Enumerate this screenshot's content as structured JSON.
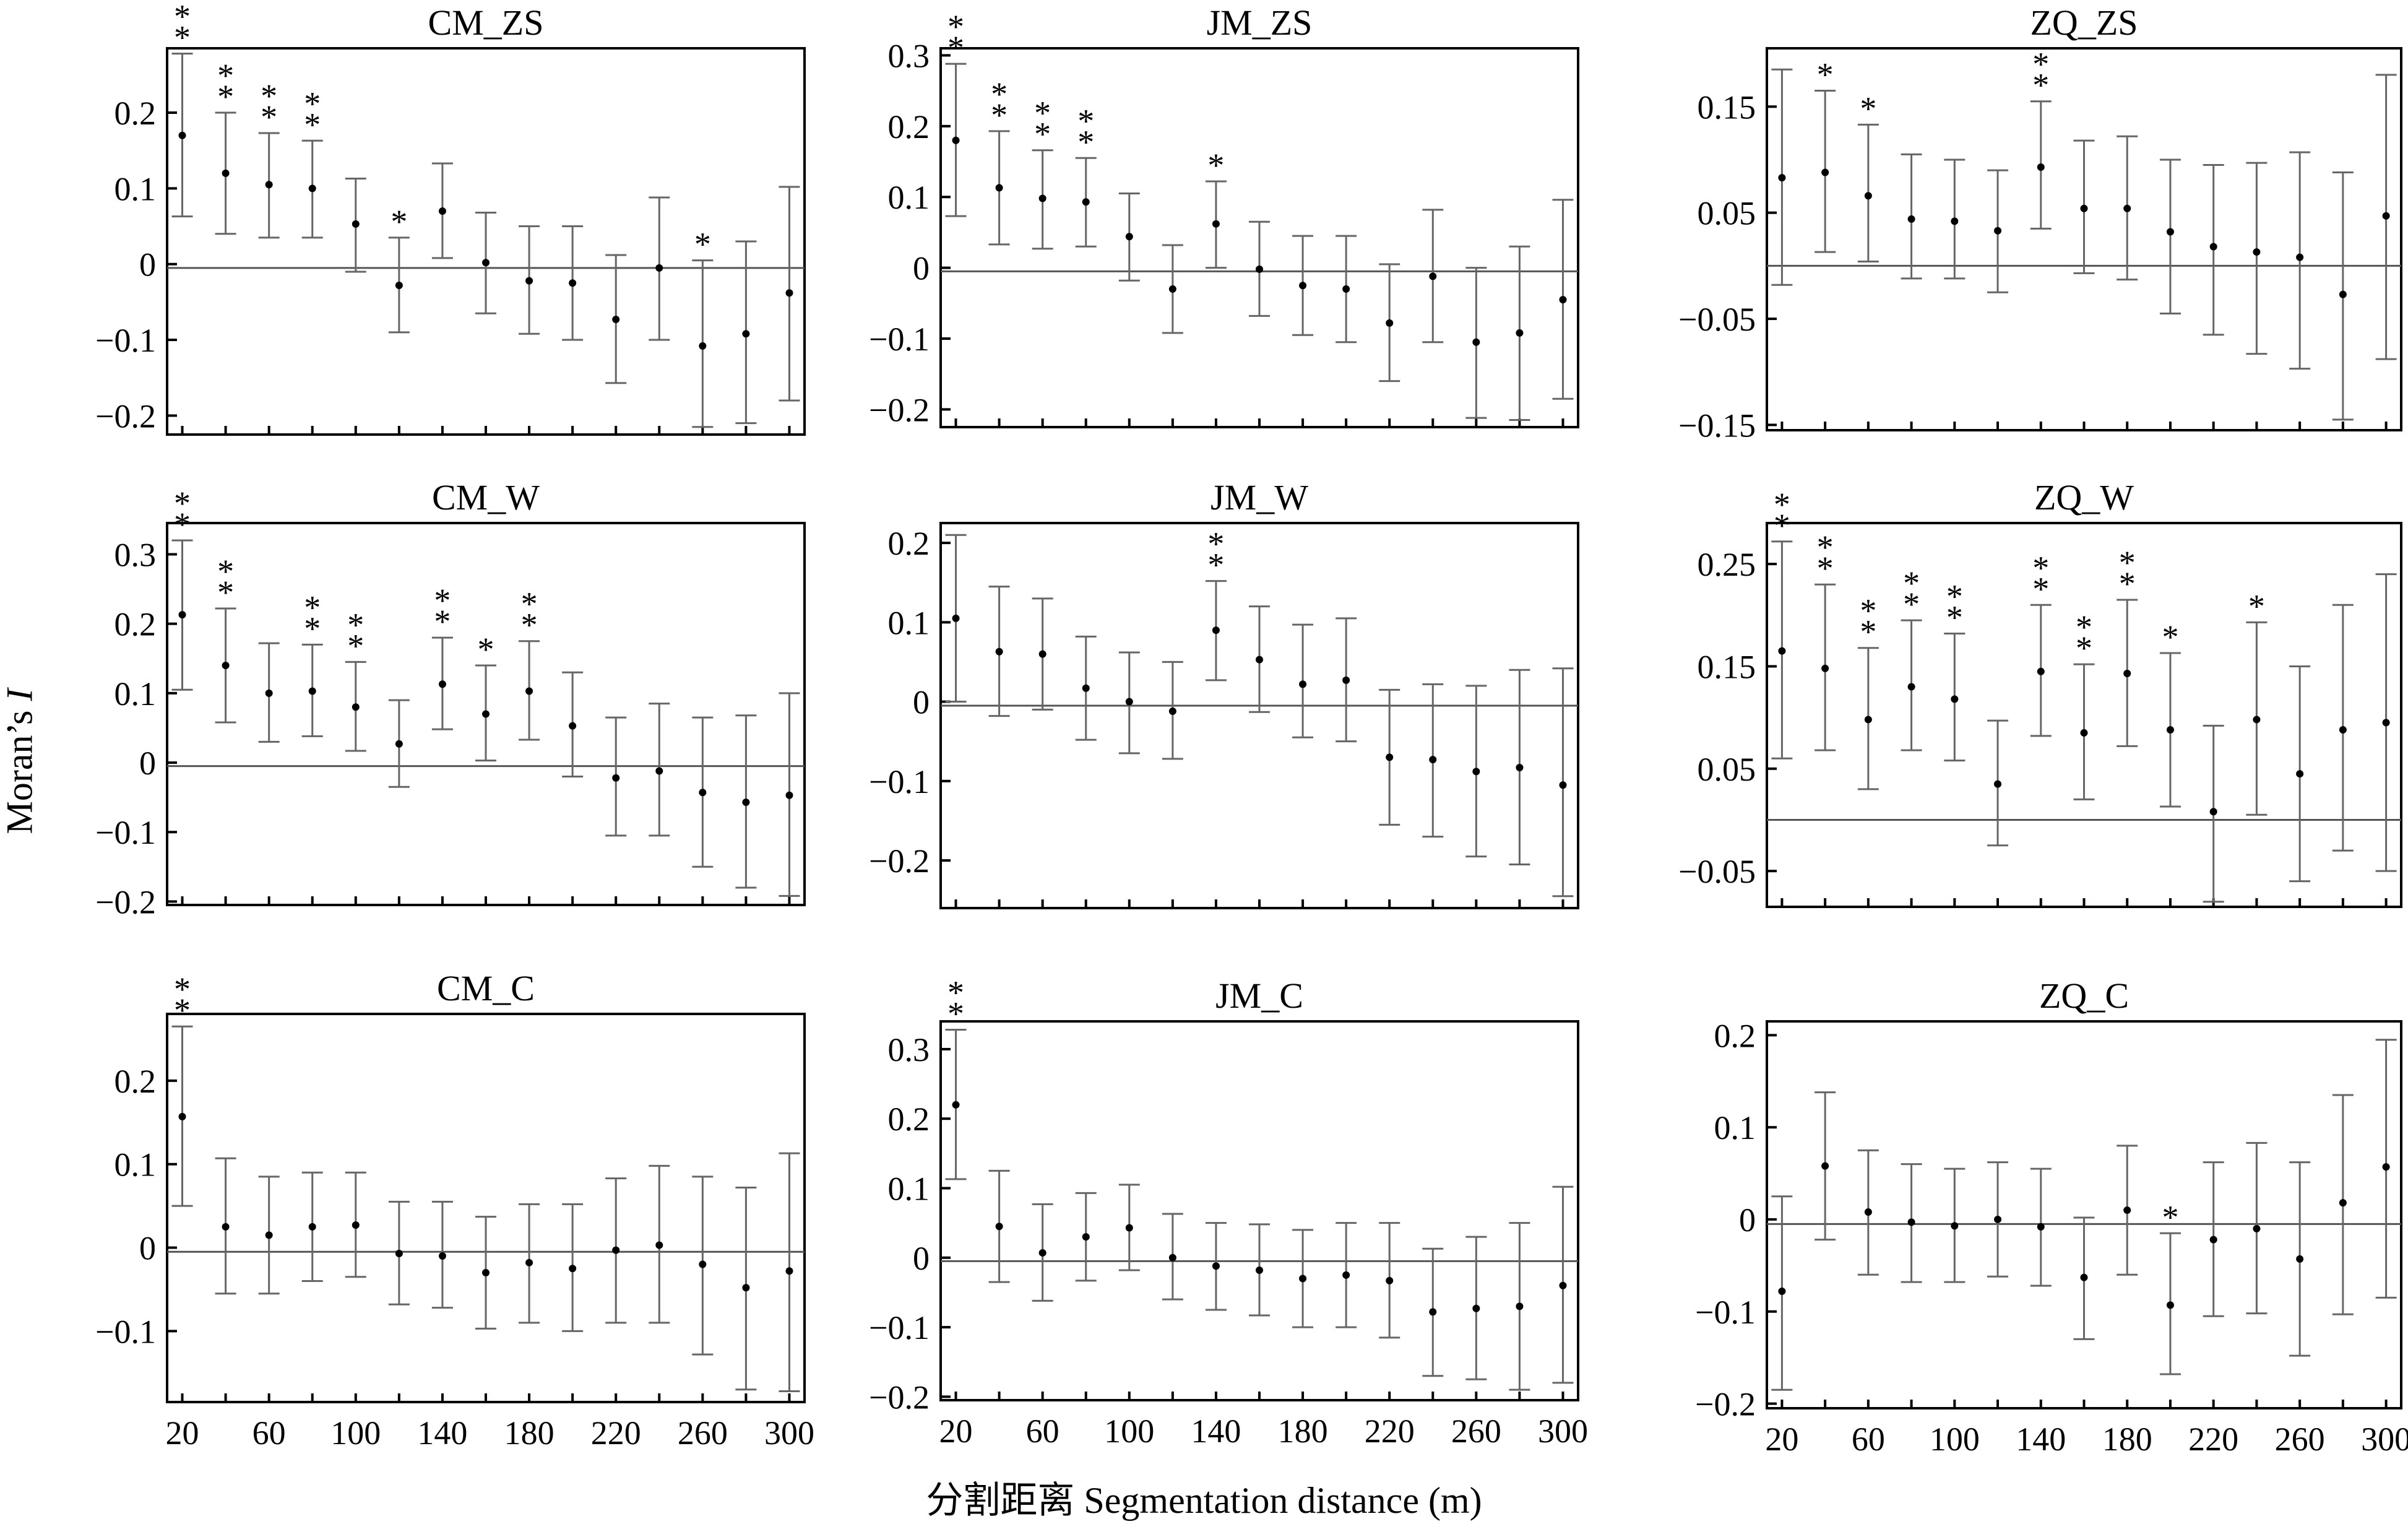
{
  "figure": {
    "xlabel": "分割距离 Segmentation distance (m)",
    "ylabel_prefix": "Moran’s",
    "ylabel_var": "I",
    "x_tick_labels": [
      "20",
      "60",
      "100",
      "140",
      "180",
      "220",
      "260",
      "300"
    ]
  },
  "chart_data": [
    {
      "type": "scatter",
      "title": "CM_ZS",
      "x": [
        20,
        40,
        60,
        80,
        100,
        120,
        140,
        160,
        180,
        200,
        220,
        240,
        260,
        280,
        300
      ],
      "values": [
        0.17,
        0.12,
        0.105,
        0.1,
        0.053,
        -0.028,
        0.07,
        0.002,
        -0.022,
        -0.025,
        -0.073,
        -0.005,
        -0.108,
        -0.092,
        -0.038
      ],
      "lower": [
        0.063,
        0.04,
        0.035,
        0.035,
        -0.01,
        -0.09,
        0.008,
        -0.065,
        -0.092,
        -0.1,
        -0.157,
        -0.1,
        -0.215,
        -0.21,
        -0.18
      ],
      "upper": [
        0.278,
        0.2,
        0.173,
        0.163,
        0.113,
        0.035,
        0.133,
        0.068,
        0.05,
        0.05,
        0.012,
        0.088,
        0.005,
        0.03,
        0.102
      ],
      "sig": [
        "**",
        "**",
        "**",
        "**",
        "",
        "*",
        "",
        "",
        "",
        "",
        "",
        "",
        "*",
        "",
        ""
      ],
      "ylim": [
        -0.225,
        0.285
      ],
      "yticks": [
        -0.2,
        -0.1,
        0,
        0.1,
        0.2
      ],
      "ytick_labels": [
        "−0.2",
        "−0.1",
        "0",
        "0.1",
        "0.2"
      ],
      "zero": -0.005,
      "show_xticklabels": false
    },
    {
      "type": "scatter",
      "title": "JM_ZS",
      "x": [
        20,
        40,
        60,
        80,
        100,
        120,
        140,
        160,
        180,
        200,
        220,
        240,
        260,
        280,
        300
      ],
      "values": [
        0.18,
        0.113,
        0.098,
        0.093,
        0.044,
        -0.03,
        0.062,
        -0.002,
        -0.025,
        -0.03,
        -0.078,
        -0.012,
        -0.105,
        -0.092,
        -0.045
      ],
      "lower": [
        0.073,
        0.033,
        0.027,
        0.03,
        -0.018,
        -0.092,
        0.0,
        -0.068,
        -0.095,
        -0.105,
        -0.16,
        -0.105,
        -0.212,
        -0.215,
        -0.185
      ],
      "upper": [
        0.288,
        0.193,
        0.166,
        0.155,
        0.105,
        0.032,
        0.122,
        0.065,
        0.045,
        0.045,
        0.005,
        0.082,
        0.0,
        0.03,
        0.096
      ],
      "sig": [
        "**",
        "**",
        "**",
        "**",
        "",
        "",
        "*",
        "",
        "",
        "",
        "",
        "",
        "",
        "",
        ""
      ],
      "ylim": [
        -0.225,
        0.31
      ],
      "yticks": [
        -0.2,
        -0.1,
        0,
        0.1,
        0.2,
        0.3
      ],
      "ytick_labels": [
        "−0.2",
        "−0.1",
        "0",
        "0.1",
        "0.2",
        "0.3"
      ],
      "zero": -0.005,
      "show_xticklabels": false
    },
    {
      "type": "scatter",
      "title": "ZQ_ZS",
      "x": [
        20,
        40,
        60,
        80,
        100,
        120,
        140,
        160,
        180,
        200,
        220,
        240,
        260,
        280,
        300
      ],
      "values": [
        0.083,
        0.088,
        0.066,
        0.044,
        0.042,
        0.033,
        0.093,
        0.054,
        0.054,
        0.032,
        0.018,
        0.013,
        0.008,
        -0.027,
        0.047
      ],
      "lower": [
        -0.018,
        0.013,
        0.004,
        -0.012,
        -0.012,
        -0.025,
        0.035,
        -0.007,
        -0.013,
        -0.045,
        -0.065,
        -0.083,
        -0.097,
        -0.145,
        -0.088
      ],
      "upper": [
        0.185,
        0.165,
        0.133,
        0.105,
        0.1,
        0.09,
        0.155,
        0.118,
        0.122,
        0.1,
        0.095,
        0.097,
        0.107,
        0.088,
        0.18
      ],
      "sig": [
        "",
        "*",
        "*",
        "",
        "",
        "",
        "**",
        "",
        "",
        "",
        "",
        "",
        "",
        "",
        ""
      ],
      "ylim": [
        -0.155,
        0.205
      ],
      "yticks": [
        -0.15,
        -0.05,
        0.05,
        0.15
      ],
      "ytick_labels": [
        "−0.15",
        "−0.05",
        "0.05",
        "0.15"
      ],
      "zero": 0,
      "show_xticklabels": false
    },
    {
      "type": "scatter",
      "title": "CM_W",
      "x": [
        20,
        40,
        60,
        80,
        100,
        120,
        140,
        160,
        180,
        200,
        220,
        240,
        260,
        280,
        300
      ],
      "values": [
        0.213,
        0.14,
        0.1,
        0.103,
        0.08,
        0.027,
        0.113,
        0.07,
        0.103,
        0.053,
        -0.022,
        -0.012,
        -0.043,
        -0.057,
        -0.047
      ],
      "lower": [
        0.105,
        0.058,
        0.03,
        0.038,
        0.017,
        -0.035,
        0.048,
        0.003,
        0.033,
        -0.02,
        -0.105,
        -0.105,
        -0.15,
        -0.18,
        -0.192
      ],
      "upper": [
        0.32,
        0.222,
        0.172,
        0.17,
        0.145,
        0.09,
        0.18,
        0.14,
        0.175,
        0.13,
        0.065,
        0.085,
        0.065,
        0.068,
        0.1
      ],
      "sig": [
        "**",
        "**",
        "",
        "**",
        "**",
        "",
        "**",
        "*",
        "**",
        "",
        "",
        "",
        "",
        "",
        ""
      ],
      "ylim": [
        -0.205,
        0.345
      ],
      "yticks": [
        -0.2,
        -0.1,
        0,
        0.1,
        0.2,
        0.3
      ],
      "ytick_labels": [
        "−0.2",
        "−0.1",
        "0",
        "0.1",
        "0.2",
        "0.3"
      ],
      "zero": -0.005,
      "show_xticklabels": false
    },
    {
      "type": "scatter",
      "title": "JM_W",
      "x": [
        20,
        40,
        60,
        80,
        100,
        120,
        140,
        160,
        180,
        200,
        220,
        240,
        260,
        280,
        300
      ],
      "values": [
        0.105,
        0.063,
        0.06,
        0.017,
        0.0,
        -0.012,
        0.09,
        0.053,
        0.022,
        0.027,
        -0.07,
        -0.073,
        -0.088,
        -0.083,
        -0.105
      ],
      "lower": [
        0.0,
        -0.018,
        -0.01,
        -0.048,
        -0.065,
        -0.072,
        0.027,
        -0.013,
        -0.045,
        -0.05,
        -0.155,
        -0.17,
        -0.195,
        -0.205,
        -0.245
      ],
      "upper": [
        0.21,
        0.145,
        0.13,
        0.082,
        0.062,
        0.05,
        0.152,
        0.12,
        0.097,
        0.105,
        0.015,
        0.022,
        0.02,
        0.04,
        0.042
      ],
      "sig": [
        "",
        "",
        "",
        "",
        "",
        "",
        "**",
        "",
        "",
        "",
        "",
        "",
        "",
        "",
        ""
      ],
      "ylim": [
        -0.26,
        0.225
      ],
      "yticks": [
        -0.2,
        -0.1,
        0,
        0.1,
        0.2
      ],
      "ytick_labels": [
        "−0.2",
        "−0.1",
        "0",
        "0.1",
        "0.2"
      ],
      "zero": -0.005,
      "show_xticklabels": false
    },
    {
      "type": "scatter",
      "title": "ZQ_W",
      "x": [
        20,
        40,
        60,
        80,
        100,
        120,
        140,
        160,
        180,
        200,
        220,
        240,
        260,
        280,
        300
      ],
      "values": [
        0.165,
        0.148,
        0.098,
        0.13,
        0.118,
        0.035,
        0.145,
        0.085,
        0.143,
        0.088,
        0.008,
        0.098,
        0.045,
        0.088,
        0.095
      ],
      "lower": [
        0.06,
        0.068,
        0.03,
        0.068,
        0.058,
        -0.025,
        0.082,
        0.02,
        0.072,
        0.013,
        -0.08,
        0.005,
        -0.06,
        -0.03,
        -0.05
      ],
      "upper": [
        0.272,
        0.23,
        0.168,
        0.195,
        0.182,
        0.097,
        0.21,
        0.152,
        0.215,
        0.163,
        0.092,
        0.193,
        0.15,
        0.21,
        0.24
      ],
      "sig": [
        "**",
        "**",
        "**",
        "**",
        "**",
        "",
        "**",
        "**",
        "**",
        "*",
        "",
        "*",
        "",
        "",
        ""
      ],
      "ylim": [
        -0.085,
        0.29
      ],
      "yticks": [
        -0.05,
        0.05,
        0.15,
        0.25
      ],
      "ytick_labels": [
        "−0.05",
        "0.05",
        "0.15",
        "0.25"
      ],
      "zero": 0,
      "show_xticklabels": false
    },
    {
      "type": "scatter",
      "title": "CM_C",
      "x": [
        20,
        40,
        60,
        80,
        100,
        120,
        140,
        160,
        180,
        200,
        220,
        240,
        260,
        280,
        300
      ],
      "values": [
        0.157,
        0.025,
        0.015,
        0.025,
        0.027,
        -0.007,
        -0.01,
        -0.03,
        -0.018,
        -0.025,
        -0.003,
        0.003,
        -0.02,
        -0.048,
        -0.028
      ],
      "lower": [
        0.05,
        -0.055,
        -0.055,
        -0.04,
        -0.035,
        -0.068,
        -0.072,
        -0.097,
        -0.09,
        -0.1,
        -0.09,
        -0.09,
        -0.128,
        -0.17,
        -0.172
      ],
      "upper": [
        0.265,
        0.107,
        0.085,
        0.09,
        0.09,
        0.055,
        0.055,
        0.037,
        0.052,
        0.052,
        0.083,
        0.098,
        0.085,
        0.072,
        0.113
      ],
      "sig": [
        "**",
        "",
        "",
        "",
        "",
        "",
        "",
        "",
        "",
        "",
        "",
        "",
        "",
        "",
        ""
      ],
      "ylim": [
        -0.185,
        0.28
      ],
      "yticks": [
        -0.1,
        0,
        0.1,
        0.2
      ],
      "ytick_labels": [
        "−0.1",
        "0",
        "0.1",
        "0.2"
      ],
      "zero": -0.005,
      "show_xticklabels": true
    },
    {
      "type": "scatter",
      "title": "JM_C",
      "x": [
        20,
        40,
        60,
        80,
        100,
        120,
        140,
        160,
        180,
        200,
        220,
        240,
        260,
        280,
        300
      ],
      "values": [
        0.22,
        0.045,
        0.007,
        0.03,
        0.043,
        0.0,
        -0.012,
        -0.018,
        -0.03,
        -0.025,
        -0.033,
        -0.078,
        -0.073,
        -0.07,
        -0.04
      ],
      "lower": [
        0.113,
        -0.035,
        -0.062,
        -0.033,
        -0.018,
        -0.06,
        -0.075,
        -0.083,
        -0.1,
        -0.1,
        -0.115,
        -0.17,
        -0.175,
        -0.19,
        -0.18
      ],
      "upper": [
        0.328,
        0.125,
        0.077,
        0.093,
        0.105,
        0.063,
        0.05,
        0.048,
        0.04,
        0.05,
        0.05,
        0.013,
        0.03,
        0.05,
        0.102
      ],
      "sig": [
        "**",
        "",
        "",
        "",
        "",
        "",
        "",
        "",
        "",
        "",
        "",
        "",
        "",
        "",
        ""
      ],
      "ylim": [
        -0.205,
        0.34
      ],
      "yticks": [
        -0.2,
        -0.1,
        0,
        0.1,
        0.2,
        0.3
      ],
      "ytick_labels": [
        "−0.2",
        "−0.1",
        "0",
        "0.1",
        "0.2",
        "0.3"
      ],
      "zero": -0.005,
      "show_xticklabels": true
    },
    {
      "type": "scatter",
      "title": "ZQ_C",
      "x": [
        20,
        40,
        60,
        80,
        100,
        120,
        140,
        160,
        180,
        200,
        220,
        240,
        260,
        280,
        300
      ],
      "values": [
        -0.078,
        0.058,
        0.008,
        -0.003,
        -0.007,
        0.0,
        -0.008,
        -0.063,
        0.01,
        -0.093,
        -0.022,
        -0.01,
        -0.043,
        0.018,
        0.057
      ],
      "lower": [
        -0.185,
        -0.022,
        -0.06,
        -0.068,
        -0.068,
        -0.062,
        -0.072,
        -0.13,
        -0.06,
        -0.168,
        -0.105,
        -0.102,
        -0.148,
        -0.103,
        -0.085
      ],
      "upper": [
        0.025,
        0.138,
        0.075,
        0.06,
        0.055,
        0.062,
        0.055,
        0.002,
        0.08,
        -0.015,
        0.062,
        0.083,
        0.062,
        0.135,
        0.195
      ],
      "sig": [
        "",
        "",
        "",
        "",
        "",
        "",
        "",
        "",
        "",
        "*",
        "",
        "",
        "",
        "",
        ""
      ],
      "ylim": [
        -0.205,
        0.215
      ],
      "yticks": [
        -0.2,
        -0.1,
        0,
        0.1,
        0.2
      ],
      "ytick_labels": [
        "−0.2",
        "−0.1",
        "0",
        "0.1",
        "0.2"
      ],
      "zero": -0.005,
      "show_xticklabels": true
    }
  ]
}
